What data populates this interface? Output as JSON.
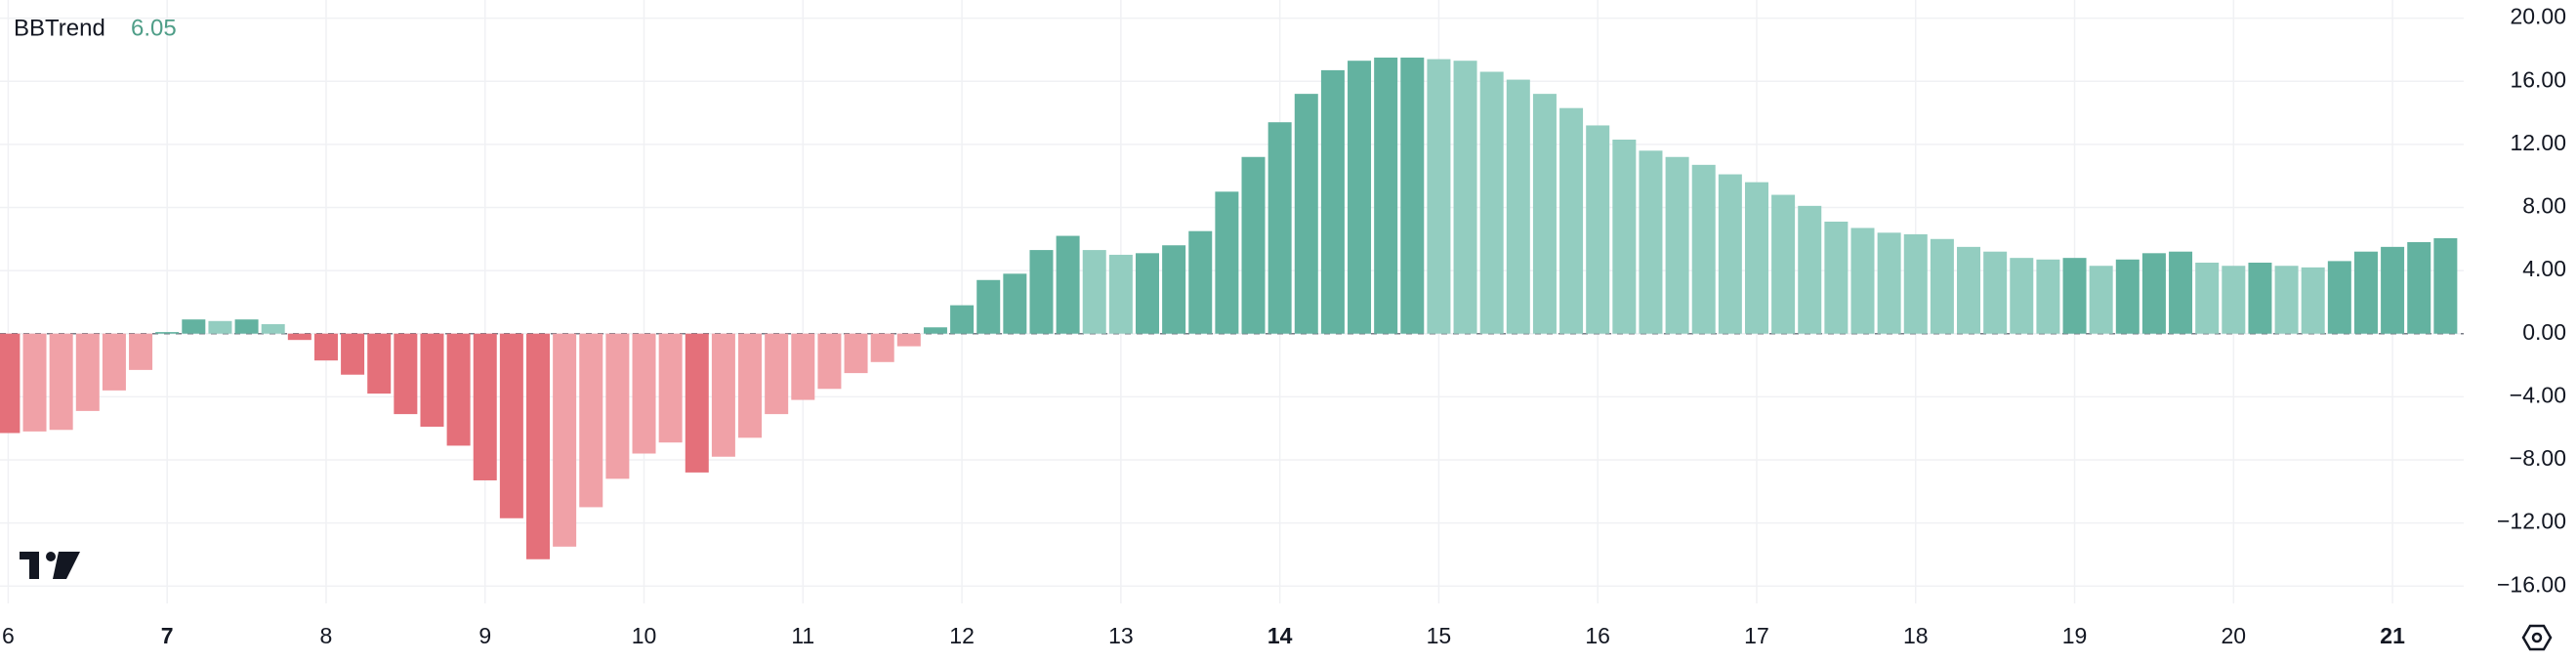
{
  "chart_data": {
    "type": "bar",
    "title": "BBTrend",
    "x_tick_labels": [
      "6",
      "7",
      "8",
      "9",
      "10",
      "11",
      "12",
      "13",
      "14",
      "15",
      "16",
      "17",
      "18",
      "19",
      "20",
      "21"
    ],
    "values": [
      -6.3,
      -6.2,
      -6.1,
      -4.9,
      -3.6,
      -2.3,
      0.1,
      0.9,
      0.8,
      0.9,
      0.6,
      -0.4,
      -1.7,
      -2.6,
      -3.8,
      -5.1,
      -5.9,
      -7.1,
      -9.3,
      -11.7,
      -14.3,
      -13.5,
      -11.0,
      -9.2,
      -7.6,
      -6.9,
      -8.8,
      -7.8,
      -6.6,
      -5.1,
      -4.2,
      -3.5,
      -2.5,
      -1.8,
      -0.8,
      0.4,
      1.8,
      3.4,
      3.8,
      5.3,
      6.2,
      5.3,
      5.0,
      5.1,
      5.6,
      6.5,
      9.0,
      11.2,
      13.4,
      15.2,
      16.7,
      17.3,
      17.5,
      17.5,
      17.4,
      17.3,
      16.6,
      16.1,
      15.2,
      14.3,
      13.2,
      12.3,
      11.6,
      11.2,
      10.7,
      10.1,
      9.6,
      8.8,
      8.1,
      7.1,
      6.7,
      6.4,
      6.3,
      6.0,
      5.5,
      5.2,
      4.8,
      4.7,
      4.8,
      4.3,
      4.7,
      5.1,
      5.2,
      4.5,
      4.3,
      4.5,
      4.3,
      4.2,
      4.6,
      5.2,
      5.5,
      5.8,
      6.05
    ],
    "colors": {
      "positive_rising": "#63b2a0",
      "positive_falling": "#93cdc0",
      "negative_falling": "#e4707a",
      "negative_rising": "#f0a1a7"
    },
    "ylim": [
      -17.1,
      21.15
    ],
    "yticks": [
      {
        "value": 20,
        "label": "20.00"
      },
      {
        "value": 16,
        "label": "16.00"
      },
      {
        "value": 12,
        "label": "12.00"
      },
      {
        "value": 8,
        "label": "8.00"
      },
      {
        "value": 4,
        "label": "4.00"
      },
      {
        "value": 0,
        "label": "0.00"
      },
      {
        "value": -4,
        "label": "−4.00"
      },
      {
        "value": -8,
        "label": "−8.00"
      },
      {
        "value": -12,
        "label": "−12.00"
      },
      {
        "value": -16,
        "label": "−16.00"
      }
    ],
    "grid": true
  }
}
